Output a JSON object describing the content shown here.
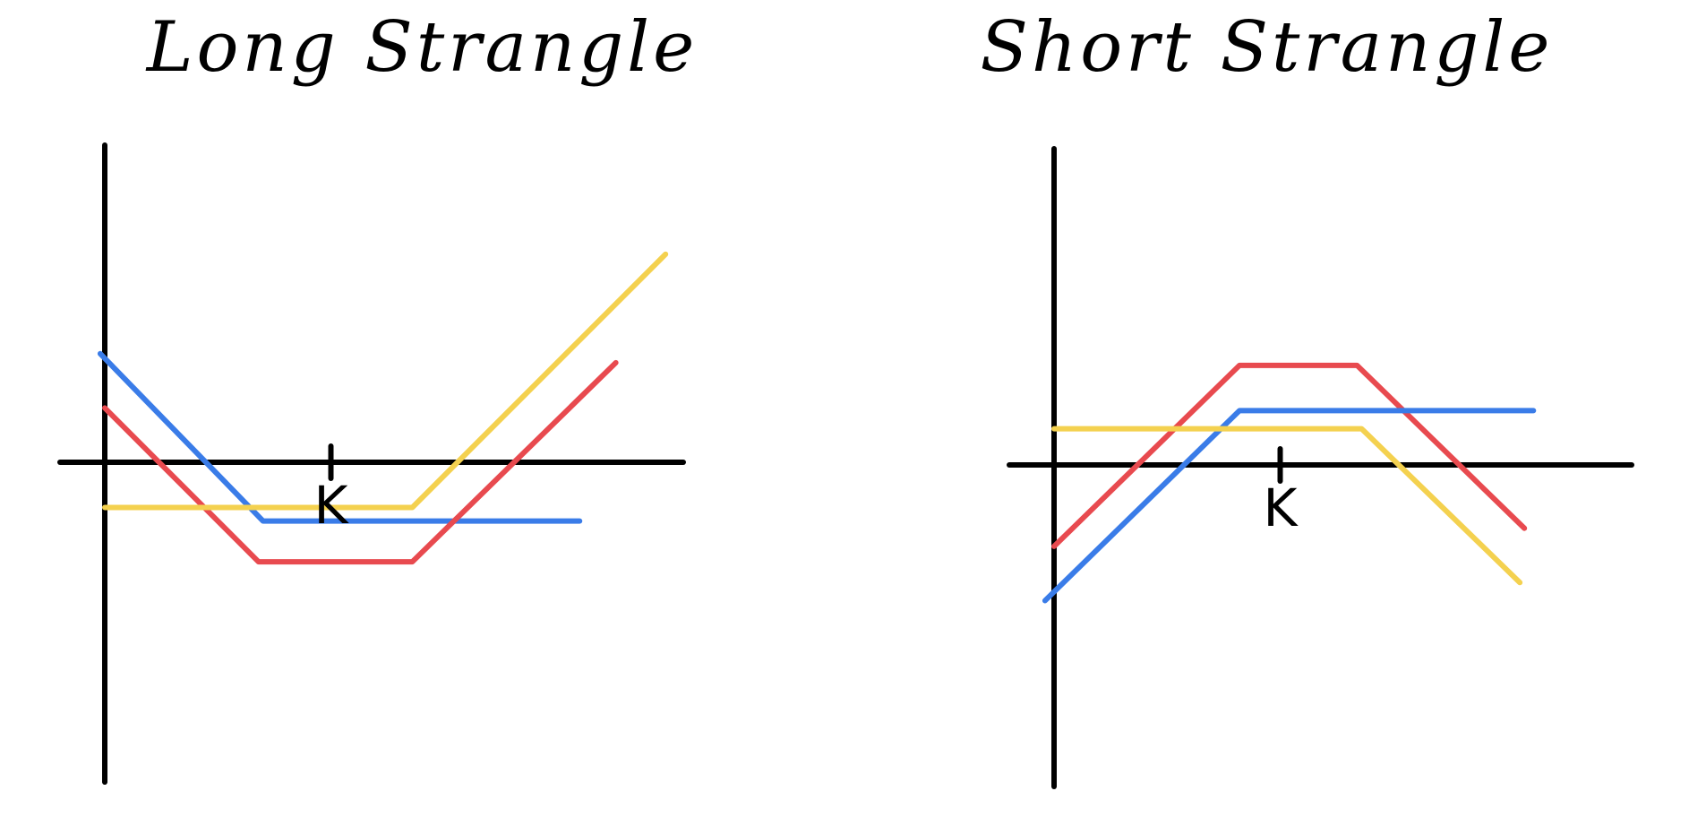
{
  "chart_data": [
    {
      "type": "line",
      "title": "Long Strangle",
      "xlabel": "",
      "ylabel": "",
      "tick_labels": {
        "x": [
          {
            "value": 5,
            "label": "K"
          }
        ]
      },
      "xlim": [
        -0.8,
        12.4
      ],
      "ylim": [
        -6,
        6
      ],
      "grid": false,
      "legend": "none",
      "series": [
        {
          "color": "#3a7ce8",
          "x": [
            -0.1,
            3.5,
            10.5
          ],
          "y": [
            2.4,
            -1.3,
            -1.3
          ]
        },
        {
          "color": "#e84a4f",
          "x": [
            0,
            3.4,
            6.8,
            11.3
          ],
          "y": [
            1.2,
            -2.2,
            -2.2,
            2.2
          ]
        },
        {
          "color": "#f4d14f",
          "x": [
            0,
            6.8,
            12.4
          ],
          "y": [
            -1,
            -1,
            4.6
          ]
        }
      ]
    },
    {
      "type": "line",
      "title": "Short Strangle",
      "xlabel": "",
      "ylabel": "",
      "tick_labels": {
        "x": [
          {
            "value": 5,
            "label": "K"
          }
        ]
      },
      "xlim": [
        -0.8,
        10.5
      ],
      "ylim": [
        -6,
        6
      ],
      "grid": false,
      "legend": "none",
      "series": [
        {
          "color": "#e84a4f",
          "x": [
            0,
            4.1,
            6.7,
            10.4
          ],
          "y": [
            -1.8,
            2.2,
            2.2,
            -1.4
          ]
        },
        {
          "color": "#3a7ce8",
          "x": [
            -0.2,
            4.1,
            10.6
          ],
          "y": [
            -3,
            1.2,
            1.2
          ]
        },
        {
          "color": "#f4d14f",
          "x": [
            0,
            6.8,
            10.3
          ],
          "y": [
            0.8,
            0.8,
            -2.6
          ]
        }
      ]
    }
  ]
}
